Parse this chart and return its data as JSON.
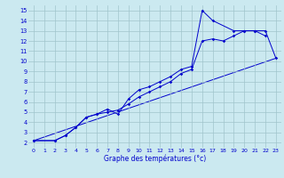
{
  "xlabel": "Graphe des températures (°c)",
  "bg_color": "#cbe9f0",
  "grid_color": "#a0c4cc",
  "line_color": "#0000cc",
  "xlim": [
    -0.5,
    23.5
  ],
  "ylim": [
    1.5,
    15.5
  ],
  "xticks": [
    0,
    1,
    2,
    3,
    4,
    5,
    6,
    7,
    8,
    9,
    10,
    11,
    12,
    13,
    14,
    15,
    16,
    17,
    18,
    19,
    20,
    21,
    22,
    23
  ],
  "yticks": [
    2,
    3,
    4,
    5,
    6,
    7,
    8,
    9,
    10,
    11,
    12,
    13,
    14,
    15
  ],
  "curve1_x": [
    0,
    2,
    3,
    4,
    5,
    6,
    7,
    8,
    9,
    10,
    11,
    12,
    13,
    14,
    15,
    16,
    17,
    19,
    20,
    21,
    22
  ],
  "curve1_y": [
    2.2,
    2.2,
    2.7,
    3.5,
    4.5,
    4.8,
    5.3,
    4.8,
    6.3,
    7.2,
    7.5,
    8.0,
    8.5,
    9.2,
    9.5,
    15.0,
    14.0,
    13.0,
    13.0,
    13.0,
    12.5
  ],
  "curve2_x": [
    0,
    2,
    3,
    4,
    5,
    6,
    7,
    8,
    9,
    10,
    11,
    12,
    13,
    14,
    15,
    16,
    17,
    18,
    19,
    20,
    21,
    22,
    23
  ],
  "curve2_y": [
    2.2,
    2.2,
    2.7,
    3.5,
    4.5,
    4.8,
    5.0,
    5.2,
    5.8,
    6.5,
    7.0,
    7.5,
    8.0,
    8.8,
    9.2,
    12.0,
    12.2,
    12.0,
    12.5,
    13.0,
    13.0,
    13.0,
    10.3
  ],
  "line3_x": [
    0,
    23
  ],
  "line3_y": [
    2.2,
    10.3
  ]
}
